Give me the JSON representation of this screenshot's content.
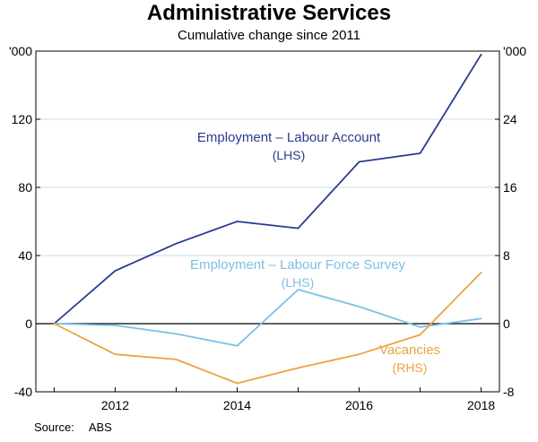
{
  "header": {
    "title": "Administrative Services",
    "subtitle": "Cumulative change since 2011"
  },
  "footer": {
    "source_label": "Source:",
    "source_value": "ABS"
  },
  "chart_data": {
    "type": "line",
    "x": [
      2011,
      2012,
      2013,
      2014,
      2015,
      2016,
      2017,
      2018
    ],
    "series": [
      {
        "name": "Employment – Labour Account",
        "axis_label": "(LHS)",
        "axis": "LHS",
        "color": "#2a3b8f",
        "values": [
          0,
          31,
          47,
          60,
          56,
          95,
          100,
          158
        ]
      },
      {
        "name": "Employment – Labour Force Survey",
        "axis_label": "(LHS)",
        "axis": "LHS",
        "color": "#7cc0e4",
        "values": [
          0,
          -1,
          -6,
          -13,
          20,
          10,
          -2,
          3
        ]
      },
      {
        "name": "Vacancies",
        "axis_label": "(RHS)",
        "axis": "RHS",
        "color": "#eea23e",
        "values": [
          0,
          -3.6,
          -4.2,
          -7,
          -5.2,
          -3.6,
          -1.3,
          6
        ]
      }
    ],
    "left_axis": {
      "unit": "'000",
      "min": -40,
      "max": 160,
      "ticks": [
        -40,
        0,
        40,
        80,
        120
      ]
    },
    "right_axis": {
      "unit": "'000",
      "min": -8,
      "max": 32,
      "ticks": [
        -8,
        0,
        8,
        16,
        24
      ]
    },
    "x_axis": {
      "min": 2010.7,
      "max": 2018.3,
      "tick_labels": [
        2012,
        2014,
        2016,
        2018
      ],
      "minor_ticks": [
        2011,
        2012,
        2013,
        2014,
        2015,
        2016,
        2017,
        2018
      ]
    },
    "grid": true,
    "legend_position": "inline-annotations",
    "style": {
      "grid_color": "#c9ddee",
      "axis_color": "#000000",
      "zero_line_color": "#000000"
    }
  }
}
